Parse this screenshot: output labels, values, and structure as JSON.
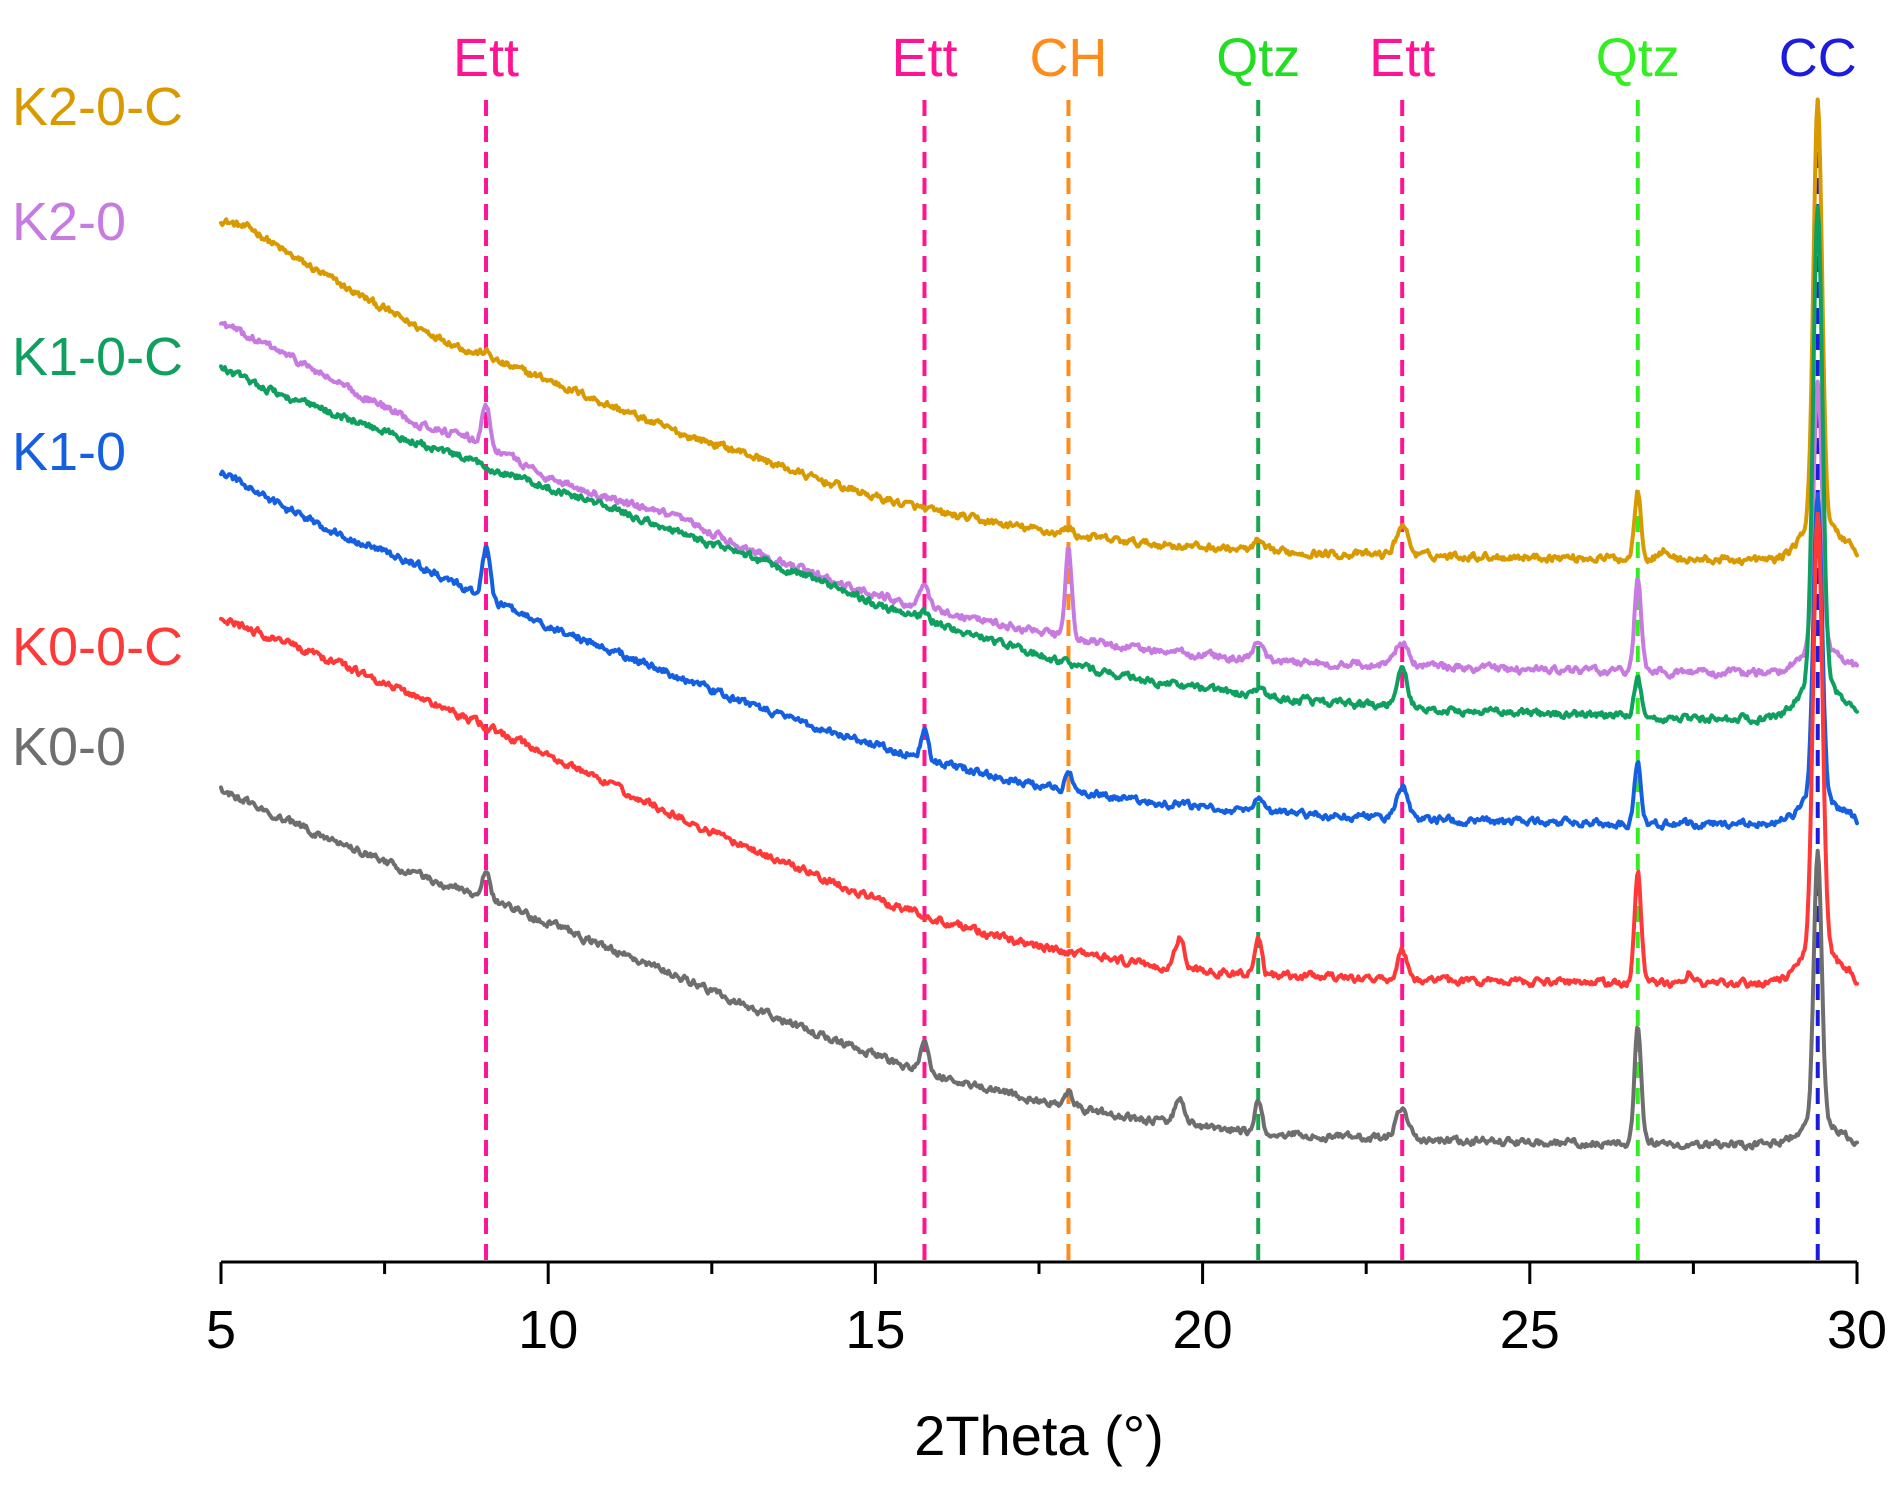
{
  "chart_data": {
    "type": "line",
    "title": "",
    "xlabel": "2Theta (°)",
    "ylabel": "",
    "xlim": [
      5,
      30
    ],
    "x_ticks": [
      5,
      10,
      15,
      20,
      25,
      30
    ],
    "x_minor_step": 2.5,
    "y_axis_shown": false,
    "offset_traces": true,
    "reference_lines": [
      {
        "label": "Ett",
        "x": 9.05,
        "color": "#ff1493"
      },
      {
        "label": "Ett",
        "x": 15.75,
        "color": "#ff1493"
      },
      {
        "label": "CH",
        "x": 17.95,
        "color": "#ff8c1a"
      },
      {
        "label": "Qtz",
        "x": 20.85,
        "color": "#1aa650",
        "line_color": "#1aa650",
        "label_color": "#22dd22"
      },
      {
        "label": "Ett",
        "x": 23.05,
        "color": "#ff1493"
      },
      {
        "label": "Qtz",
        "x": 26.65,
        "color": "#33ee22"
      },
      {
        "label": "CC",
        "x": 29.4,
        "color": "#1c1cdd"
      }
    ],
    "series": [
      {
        "name": "K2-0-C",
        "color": "#d99a00",
        "baseline": [
          [
            5.0,
            1005
          ],
          [
            5.5,
            995
          ],
          [
            6,
            972
          ],
          [
            7,
            934
          ],
          [
            8,
            898
          ],
          [
            9,
            868
          ],
          [
            10,
            845
          ],
          [
            11,
            818
          ],
          [
            12,
            792
          ],
          [
            13,
            772
          ],
          [
            14,
            748
          ],
          [
            15,
            728
          ],
          [
            16,
            712
          ],
          [
            17,
            700
          ],
          [
            18,
            690
          ],
          [
            19,
            682
          ],
          [
            20,
            678
          ],
          [
            21,
            674
          ],
          [
            22,
            671
          ],
          [
            23,
            670
          ],
          [
            24,
            669
          ],
          [
            25,
            668
          ],
          [
            26,
            667
          ],
          [
            27,
            666
          ],
          [
            28,
            665
          ],
          [
            28.8,
            665
          ]
        ],
        "tail": [
          [
            29.9,
            678
          ],
          [
            30.0,
            670
          ]
        ],
        "peaks": [
          {
            "x": 9.05,
            "h": 6,
            "w": 0.08
          },
          {
            "x": 17.95,
            "h": 7,
            "w": 0.06
          },
          {
            "x": 20.85,
            "h": 9,
            "w": 0.06
          },
          {
            "x": 23.05,
            "h": 30,
            "w": 0.09
          },
          {
            "x": 26.65,
            "h": 70,
            "w": 0.05
          },
          {
            "x": 27.05,
            "h": 8,
            "w": 0.08
          },
          {
            "x": 29.4,
            "h": 420,
            "w": 0.065
          }
        ]
      },
      {
        "name": "K2-0",
        "color": "#c77ae0",
        "baseline": [
          [
            5.0,
            902
          ],
          [
            6,
            870
          ],
          [
            7,
            834
          ],
          [
            8,
            802
          ],
          [
            9,
            782
          ],
          [
            10,
            748
          ],
          [
            11,
            725
          ],
          [
            12,
            706
          ],
          [
            13,
            678
          ],
          [
            14,
            652
          ],
          [
            15,
            630
          ],
          [
            16,
            614
          ],
          [
            17,
            600
          ],
          [
            18,
            586
          ],
          [
            19,
            576
          ],
          [
            20,
            570
          ],
          [
            21,
            565
          ],
          [
            22,
            561
          ],
          [
            23,
            560
          ],
          [
            24,
            557
          ],
          [
            25,
            555
          ],
          [
            26,
            554
          ],
          [
            27,
            553
          ],
          [
            28,
            552
          ],
          [
            28.8,
            553
          ]
        ],
        "tail": [
          [
            29.9,
            560
          ],
          [
            30.0,
            556
          ]
        ],
        "peaks": [
          {
            "x": 9.05,
            "h": 40,
            "w": 0.06
          },
          {
            "x": 15.75,
            "h": 22,
            "w": 0.06
          },
          {
            "x": 17.95,
            "h": 90,
            "w": 0.05
          },
          {
            "x": 20.85,
            "h": 15,
            "w": 0.07
          },
          {
            "x": 23.05,
            "h": 25,
            "w": 0.09
          },
          {
            "x": 26.65,
            "h": 95,
            "w": 0.05
          },
          {
            "x": 29.4,
            "h": 265,
            "w": 0.065
          }
        ]
      },
      {
        "name": "K1-0-C",
        "color": "#0fa060",
        "baseline": [
          [
            5.0,
            857
          ],
          [
            6,
            828
          ],
          [
            7,
            805
          ],
          [
            8,
            782
          ],
          [
            9,
            760
          ],
          [
            10,
            738
          ],
          [
            11,
            716
          ],
          [
            12,
            692
          ],
          [
            13,
            670
          ],
          [
            14,
            648
          ],
          [
            15,
            622
          ],
          [
            16,
            600
          ],
          [
            17,
            580
          ],
          [
            18,
            560
          ],
          [
            19,
            546
          ],
          [
            20,
            536
          ],
          [
            21,
            528
          ],
          [
            22,
            522
          ],
          [
            23,
            518
          ],
          [
            24,
            514
          ],
          [
            25,
            512
          ],
          [
            26,
            510
          ],
          [
            27,
            507
          ],
          [
            28,
            506
          ],
          [
            28.8,
            507
          ]
        ],
        "tail": [
          [
            29.9,
            514
          ],
          [
            30.0,
            507
          ]
        ],
        "peaks": [
          {
            "x": 15.75,
            "h": 6,
            "w": 0.08
          },
          {
            "x": 20.85,
            "h": 7,
            "w": 0.07
          },
          {
            "x": 23.05,
            "h": 40,
            "w": 0.08
          },
          {
            "x": 26.65,
            "h": 42,
            "w": 0.05
          },
          {
            "x": 29.4,
            "h": 470,
            "w": 0.07
          }
        ]
      },
      {
        "name": "K1-0",
        "color": "#1560e0",
        "baseline": [
          [
            5.0,
            753
          ],
          [
            6,
            716
          ],
          [
            7,
            686
          ],
          [
            8,
            660
          ],
          [
            9,
            628
          ],
          [
            10,
            598
          ],
          [
            11,
            574
          ],
          [
            12,
            548
          ],
          [
            13,
            522
          ],
          [
            14,
            500
          ],
          [
            15,
            480
          ],
          [
            16,
            462
          ],
          [
            17,
            446
          ],
          [
            18,
            434
          ],
          [
            19,
            424
          ],
          [
            20,
            418
          ],
          [
            21,
            413
          ],
          [
            22,
            409
          ],
          [
            23,
            407
          ],
          [
            24,
            404
          ],
          [
            25,
            403
          ],
          [
            26,
            402
          ],
          [
            27,
            401
          ],
          [
            28,
            401
          ],
          [
            28.8,
            402
          ]
        ],
        "tail": [
          [
            29.9,
            408
          ],
          [
            30.0,
            402
          ]
        ],
        "peaks": [
          {
            "x": 9.05,
            "h": 50,
            "w": 0.06
          },
          {
            "x": 15.75,
            "h": 30,
            "w": 0.05
          },
          {
            "x": 17.95,
            "h": 20,
            "w": 0.05
          },
          {
            "x": 20.85,
            "h": 10,
            "w": 0.06
          },
          {
            "x": 23.05,
            "h": 32,
            "w": 0.08
          },
          {
            "x": 26.65,
            "h": 62,
            "w": 0.05
          },
          {
            "x": 29.4,
            "h": 300,
            "w": 0.065
          }
        ]
      },
      {
        "name": "K0-0-C",
        "color": "#ff3838",
        "baseline": [
          [
            5.0,
            606
          ],
          [
            6,
            582
          ],
          [
            7,
            556
          ],
          [
            8,
            528
          ],
          [
            9,
            500
          ],
          [
            10,
            470
          ],
          [
            11,
            438
          ],
          [
            12,
            408
          ],
          [
            13,
            378
          ],
          [
            14,
            352
          ],
          [
            15,
            326
          ],
          [
            16,
            304
          ],
          [
            17,
            286
          ],
          [
            18,
            272
          ],
          [
            19,
            262
          ],
          [
            20,
            254
          ],
          [
            21,
            250
          ],
          [
            22,
            247
          ],
          [
            23,
            245
          ],
          [
            24,
            244
          ],
          [
            25,
            243
          ],
          [
            26,
            242
          ],
          [
            27,
            242
          ],
          [
            28,
            241
          ],
          [
            28.8,
            242
          ]
        ],
        "tail": [
          [
            29.9,
            248
          ],
          [
            30.0,
            242
          ]
        ],
        "peaks": [
          {
            "x": 19.65,
            "h": 30,
            "w": 0.07
          },
          {
            "x": 20.85,
            "h": 38,
            "w": 0.05
          },
          {
            "x": 23.05,
            "h": 30,
            "w": 0.07
          },
          {
            "x": 26.65,
            "h": 112,
            "w": 0.05
          },
          {
            "x": 27.45,
            "h": 12,
            "w": 0.06
          },
          {
            "x": 29.4,
            "h": 430,
            "w": 0.07
          }
        ]
      },
      {
        "name": "K0-0",
        "color": "#6e6e6e",
        "baseline": [
          [
            5.0,
            435
          ],
          [
            6,
            404
          ],
          [
            7,
            378
          ],
          [
            8,
            350
          ],
          [
            9,
            328
          ],
          [
            10,
            302
          ],
          [
            11,
            274
          ],
          [
            12,
            248
          ],
          [
            13,
            220
          ],
          [
            14,
            194
          ],
          [
            15,
            170
          ],
          [
            16,
            148
          ],
          [
            17,
            132
          ],
          [
            18,
            118
          ],
          [
            19,
            106
          ],
          [
            20,
            98
          ],
          [
            21,
            92
          ],
          [
            22,
            88
          ],
          [
            23,
            86
          ],
          [
            24,
            84
          ],
          [
            25,
            83
          ],
          [
            26,
            82
          ],
          [
            27,
            81
          ],
          [
            28,
            80
          ],
          [
            28.8,
            82
          ]
        ],
        "tail": [
          [
            29.9,
            85
          ],
          [
            30.0,
            80
          ]
        ],
        "peaks": [
          {
            "x": 9.05,
            "h": 30,
            "w": 0.06
          },
          {
            "x": 15.75,
            "h": 28,
            "w": 0.06
          },
          {
            "x": 17.95,
            "h": 14,
            "w": 0.06
          },
          {
            "x": 19.65,
            "h": 22,
            "w": 0.08
          },
          {
            "x": 20.85,
            "h": 30,
            "w": 0.05
          },
          {
            "x": 23.05,
            "h": 30,
            "w": 0.1
          },
          {
            "x": 26.65,
            "h": 120,
            "w": 0.05
          },
          {
            "x": 29.4,
            "h": 270,
            "w": 0.06
          }
        ]
      }
    ]
  }
}
